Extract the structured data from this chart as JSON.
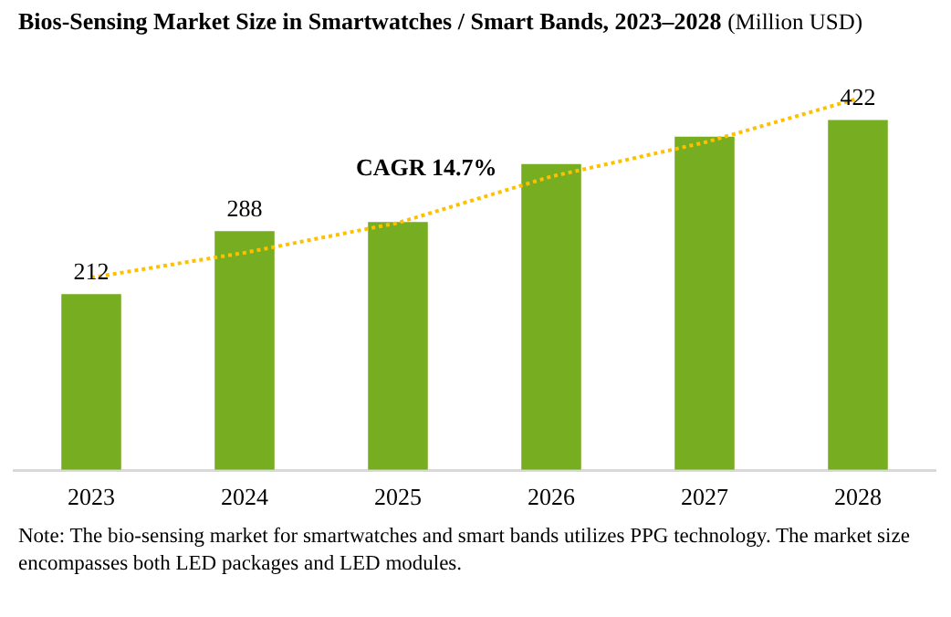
{
  "chart_data": {
    "type": "bar",
    "title": "Bios-Sensing Market Size in Smartwatches / Smart Bands, 2023–2028",
    "subtitle": "(Million USD)",
    "categories": [
      "2023",
      "2024",
      "2025",
      "2026",
      "2027",
      "2028"
    ],
    "series": [
      {
        "color": "#76ad21",
        "values": [
          212,
          288,
          299,
          369,
          402,
          422
        ],
        "value_labels": [
          "212",
          "288",
          null,
          null,
          null,
          "422"
        ]
      },
      {
        "type": "line",
        "color": "#ffc000",
        "values": [
          232,
          262,
          298,
          354,
          395,
          448
        ]
      }
    ],
    "tick_labels": "x",
    "line_style": "dotted",
    "annotations": [
      "CAGR 14.7%",
      "Note: The bio-sensing market for smartwatches and smart bands utilizes PPG technology. The market size encompasses both LED packages and LED modules."
    ]
  }
}
